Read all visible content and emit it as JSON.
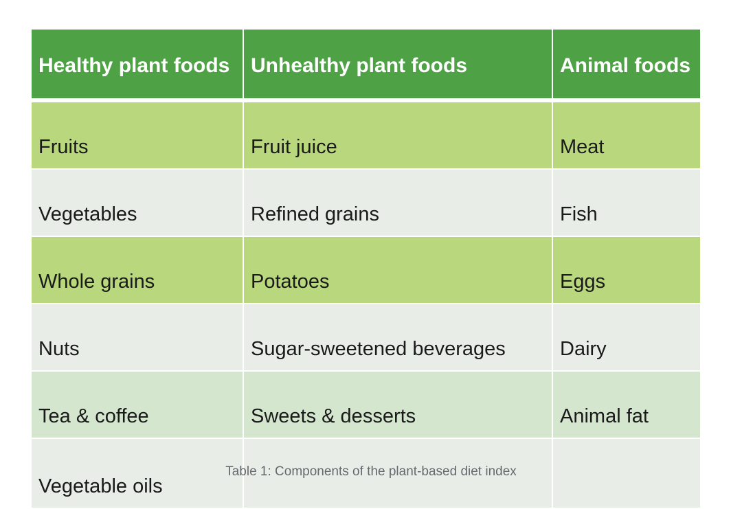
{
  "table": {
    "headers": [
      "Healthy plant foods",
      "Unhealthy plant foods",
      "Animal foods"
    ],
    "rows": [
      [
        "Fruits",
        "Fruit juice",
        "Meat"
      ],
      [
        "Vegetables",
        "Refined grains",
        "Fish"
      ],
      [
        "Whole grains",
        "Potatoes",
        "Eggs"
      ],
      [
        "Nuts",
        "Sugar-sweetened beverages",
        "Dairy"
      ],
      [
        "Tea & coffee",
        "Sweets & desserts",
        "Animal fat"
      ],
      [
        "Vegetable oils",
        "",
        ""
      ]
    ]
  },
  "caption": "Table 1: Components of the plant-based diet index",
  "colors": {
    "header_bg": "#4ea245",
    "row_green": "#b9d77c",
    "row_gray": "#e8eee7",
    "row_mint": "#d5e6cf"
  }
}
